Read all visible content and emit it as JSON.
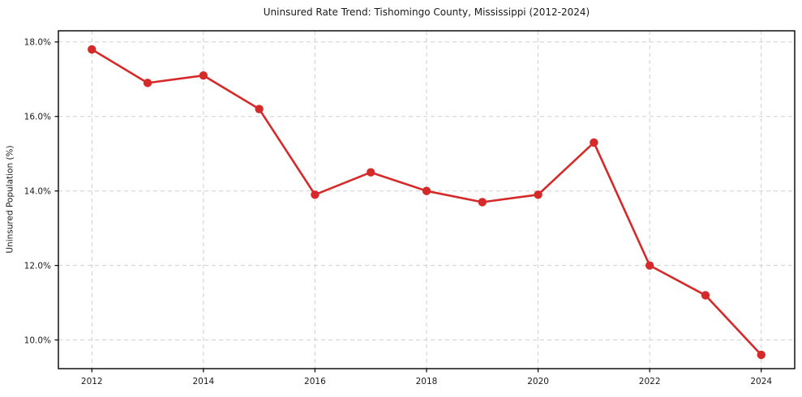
{
  "chart_data": {
    "type": "line",
    "title": "Uninsured Rate Trend: Tishomingo County, Mississippi (2012-2024)",
    "xlabel": "",
    "ylabel": "Uninsured Population (%)",
    "x": [
      2012,
      2013,
      2014,
      2015,
      2016,
      2017,
      2018,
      2019,
      2020,
      2021,
      2022,
      2023,
      2024
    ],
    "values": [
      17.8,
      16.9,
      17.1,
      16.2,
      13.9,
      14.5,
      14.0,
      13.7,
      13.9,
      15.3,
      12.0,
      11.2,
      9.6
    ],
    "x_ticks": [
      2012,
      2014,
      2016,
      2018,
      2020,
      2022,
      2024
    ],
    "x_tick_labels": [
      "2012",
      "2014",
      "2016",
      "2018",
      "2020",
      "2022",
      "2024"
    ],
    "y_ticks": [
      10.0,
      12.0,
      14.0,
      16.0,
      18.0
    ],
    "y_tick_labels": [
      "10.0%",
      "12.0%",
      "14.0%",
      "16.0%",
      "18.0%"
    ],
    "xlim": [
      2011.4,
      2024.6
    ],
    "ylim": [
      9.23,
      18.3
    ],
    "grid": true,
    "legend_position": "none",
    "line_color": "#d62a2a",
    "grid_color": "#cfcfcf",
    "spine_color": "#000000",
    "text_color": "#1a1a1a"
  }
}
